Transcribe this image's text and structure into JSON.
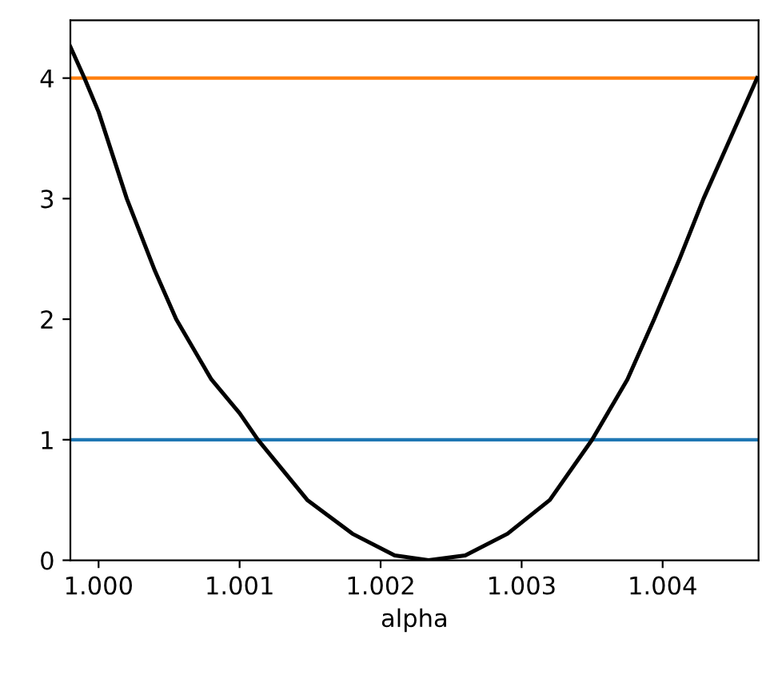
{
  "chart_data": {
    "type": "line",
    "xlabel": "alpha",
    "series": [
      {
        "color": "#000000",
        "x": [
          0.9998,
          0.9999,
          1.0,
          1.0002,
          1.0004,
          1.00055,
          1.0008,
          1.001,
          1.00113,
          1.00148,
          1.0018,
          1.0021,
          1.00234,
          1.0026,
          1.0029,
          1.0032,
          1.0035,
          1.00375,
          1.00394,
          1.00412,
          1.00429,
          1.00448,
          1.00467
        ],
        "values": [
          4.26,
          4.0,
          3.72,
          3.0,
          2.4,
          2.0,
          1.5,
          1.22,
          1.0,
          0.5,
          0.22,
          0.04,
          0.0,
          0.04,
          0.22,
          0.5,
          1.0,
          1.5,
          2.0,
          2.5,
          3.0,
          3.5,
          4.0
        ]
      }
    ],
    "ref_lines": [
      {
        "axis": "y",
        "value": 4,
        "color": "#ff7f0e"
      },
      {
        "axis": "y",
        "value": 1,
        "color": "#1f77b4"
      }
    ],
    "xlim": [
      0.9998,
      1.00468
    ],
    "ylim": [
      0,
      4.48
    ],
    "xticks": [
      {
        "value": 1.0,
        "label": "1.000"
      },
      {
        "value": 1.001,
        "label": "1.001"
      },
      {
        "value": 1.002,
        "label": "1.002"
      },
      {
        "value": 1.003,
        "label": "1.003"
      },
      {
        "value": 1.004,
        "label": "1.004"
      }
    ],
    "yticks": [
      0,
      1,
      2,
      3,
      4
    ],
    "grid": false,
    "legend": false
  }
}
